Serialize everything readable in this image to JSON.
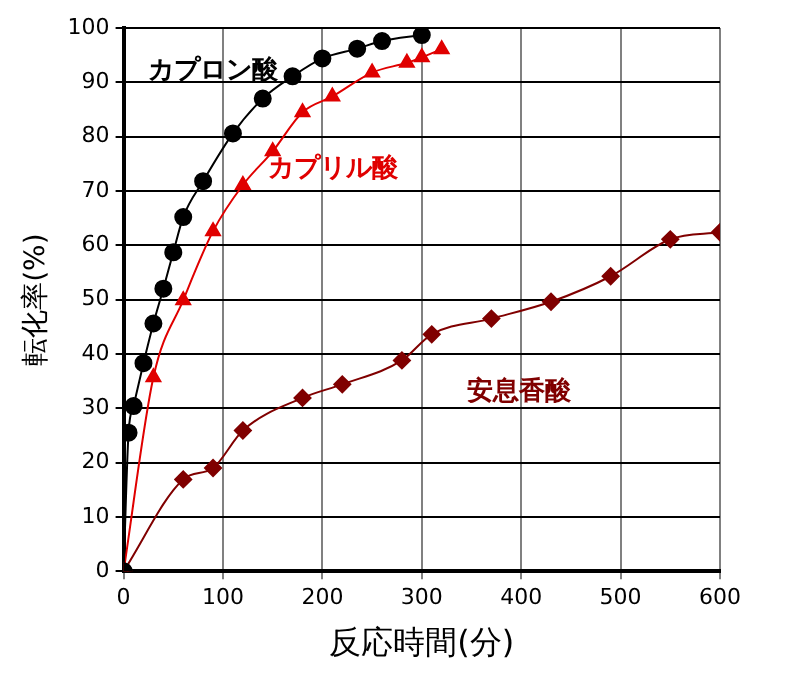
{
  "chart_data": {
    "type": "line",
    "xlabel": "反応時間(分)",
    "ylabel": "転化率(%)",
    "xlim": [
      0,
      600
    ],
    "xticks": [
      0,
      100,
      200,
      300,
      400,
      500,
      600
    ],
    "ylim": [
      0,
      100
    ],
    "yticks": [
      0,
      10,
      20,
      30,
      40,
      50,
      60,
      70,
      80,
      90,
      100
    ],
    "grid": true,
    "legend": false,
    "line_style": "solid",
    "series": [
      {
        "name": "カプロン酸",
        "color": "#000000",
        "marker": "circle",
        "x": [
          0,
          5,
          10,
          20,
          30,
          40,
          50,
          60,
          80,
          110,
          140,
          170,
          200,
          235,
          260,
          300
        ],
        "values": [
          0,
          25.5,
          30.4,
          38.3,
          45.6,
          52,
          58.7,
          65.2,
          71.8,
          80.6,
          87,
          91.1,
          94.4,
          96.2,
          97.6,
          98.7
        ]
      },
      {
        "name": "カプリル酸",
        "color": "#e00000",
        "marker": "triangle",
        "x": [
          0,
          30,
          60,
          90,
          120,
          150,
          180,
          210,
          250,
          285,
          300,
          320
        ],
        "values": [
          0,
          35.7,
          49.9,
          62.6,
          71.1,
          77.3,
          84.5,
          87.4,
          91.8,
          93.6,
          94.6,
          96.1
        ]
      },
      {
        "name": "安息香酸",
        "color": "#800000",
        "marker": "diamond",
        "x": [
          0,
          60,
          90,
          120,
          180,
          220,
          280,
          310,
          370,
          430,
          490,
          550,
          600
        ],
        "values": [
          0,
          16.9,
          19,
          25.9,
          31.9,
          34.4,
          38.8,
          43.6,
          46.5,
          49.6,
          54.3,
          61.1,
          62.4
        ]
      }
    ]
  }
}
